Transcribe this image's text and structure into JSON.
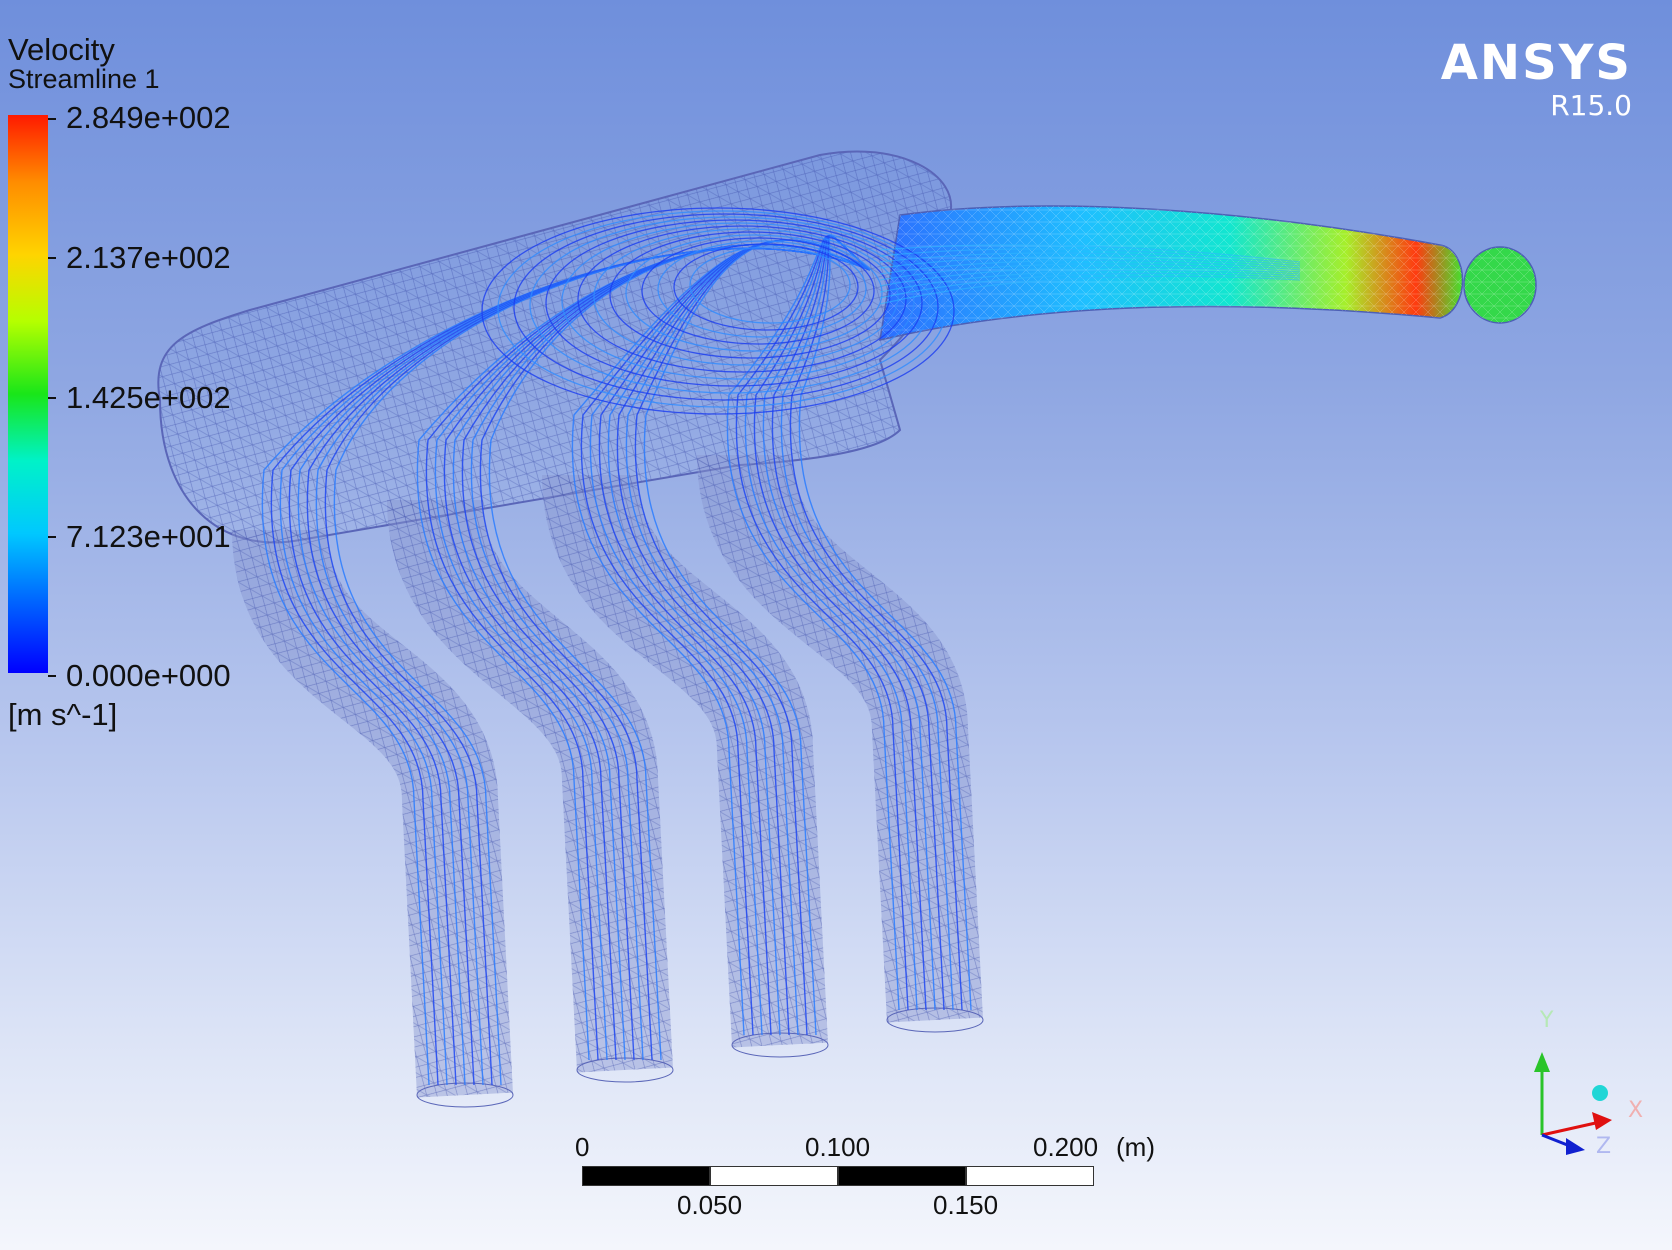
{
  "legend": {
    "title": "Velocity",
    "subtitle": "Streamline 1",
    "ticks": [
      "2.849e+002",
      "2.137e+002",
      "1.425e+002",
      "7.123e+001",
      "0.000e+000"
    ],
    "units": "[m s^-1]"
  },
  "logo": {
    "name": "ANSYS",
    "version": "R15.0"
  },
  "scale_bar": {
    "top_labels": [
      "0",
      "0.100",
      "0.200"
    ],
    "bottom_labels": [
      "0.050",
      "0.150"
    ],
    "unit": "(m)"
  },
  "axes": {
    "y": "Y",
    "x": "X",
    "z": "Z"
  },
  "colors": {
    "accent": "#ffffff",
    "stream_low": "#1a3cff",
    "stream_high": "#ff2200"
  }
}
